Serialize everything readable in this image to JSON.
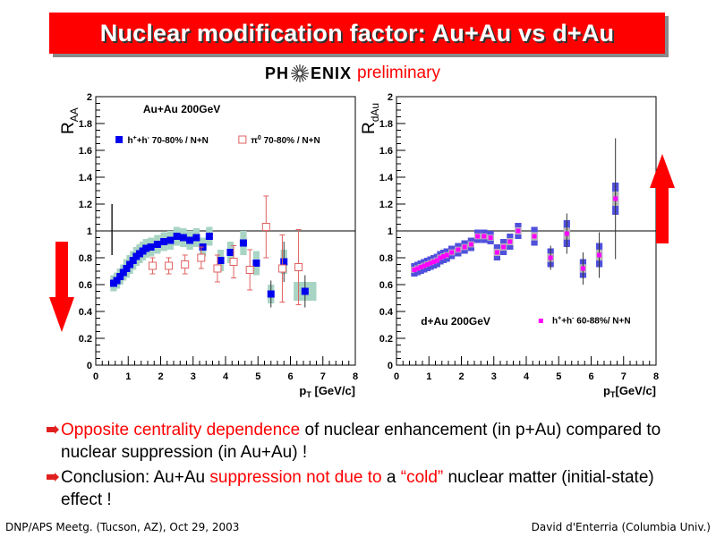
{
  "title": "Nuclear modification factor: Au+Au vs d+Au",
  "logo": {
    "left": "PH",
    "right": "ENIX",
    "tag": "preliminary"
  },
  "colors": {
    "title_bg": "#ff0000",
    "accent_red": "#ff0000",
    "band_green": "#a8d4c4",
    "band_blue": "#5050dd",
    "band_gray": "#b8b8b8",
    "blue": "#0000ee",
    "open_red": "#e06060",
    "magenta": "#ff00ff"
  },
  "chart_data": [
    {
      "type": "scatter",
      "ylabel": "R",
      "ylabel_sub": "AA",
      "xlabel": "p",
      "xlabel_sub": "T",
      "xlabel_unit": " [GeV/c]",
      "xlim": [
        0,
        8
      ],
      "ylim": [
        0,
        2
      ],
      "xticks": [
        "0",
        "1",
        "2",
        "3",
        "4",
        "5",
        "6",
        "7",
        "8"
      ],
      "yticks": [
        "0",
        "0.2",
        "0.4",
        "0.6",
        "0.8",
        "1",
        "1.2",
        "1.4",
        "1.6",
        "1.8",
        "2"
      ],
      "annotation": "Au+Au 200GeV",
      "reference_line": 1,
      "legend": [
        {
          "symbol": "filled-square",
          "label_html": "h<sup>+</sup>+h<sup>-</sup> 70-80% / N+N",
          "label": "h+ +h- 70-80% / N+N"
        },
        {
          "symbol": "open-square",
          "label_html": "π<sup>0</sup> 70-80% / N+N",
          "label": "π0 70-80% / N+N"
        }
      ],
      "legend_position": "top-left",
      "normalization_bar": {
        "x": 0.5,
        "lo": 0.82,
        "hi": 1.2
      },
      "series": [
        {
          "name": "h+ +h- 70-80% / N+N",
          "marker": "filled-square",
          "points": [
            {
              "x": 0.55,
              "y": 0.61,
              "band": 0.06
            },
            {
              "x": 0.65,
              "y": 0.63,
              "band": 0.06
            },
            {
              "x": 0.75,
              "y": 0.66,
              "band": 0.06
            },
            {
              "x": 0.85,
              "y": 0.69,
              "band": 0.06
            },
            {
              "x": 0.95,
              "y": 0.72,
              "band": 0.07
            },
            {
              "x": 1.05,
              "y": 0.75,
              "band": 0.07
            },
            {
              "x": 1.15,
              "y": 0.78,
              "band": 0.07
            },
            {
              "x": 1.25,
              "y": 0.81,
              "band": 0.07
            },
            {
              "x": 1.35,
              "y": 0.83,
              "band": 0.07
            },
            {
              "x": 1.45,
              "y": 0.85,
              "band": 0.07
            },
            {
              "x": 1.55,
              "y": 0.87,
              "band": 0.07
            },
            {
              "x": 1.7,
              "y": 0.88,
              "band": 0.07
            },
            {
              "x": 1.9,
              "y": 0.9,
              "band": 0.07
            },
            {
              "x": 2.1,
              "y": 0.92,
              "band": 0.07
            },
            {
              "x": 2.3,
              "y": 0.93,
              "band": 0.07
            },
            {
              "x": 2.5,
              "y": 0.96,
              "band": 0.07
            },
            {
              "x": 2.7,
              "y": 0.95,
              "band": 0.07
            },
            {
              "x": 2.9,
              "y": 0.93,
              "band": 0.07
            },
            {
              "x": 3.1,
              "y": 0.95,
              "band": 0.07
            },
            {
              "x": 3.3,
              "y": 0.88,
              "band": 0.07
            },
            {
              "x": 3.5,
              "y": 0.96,
              "band": 0.07
            },
            {
              "x": 3.85,
              "y": 0.78,
              "band": 0.08
            },
            {
              "x": 4.15,
              "y": 0.84,
              "band": 0.08
            },
            {
              "x": 4.55,
              "y": 0.91,
              "band": 0.09
            },
            {
              "x": 4.95,
              "y": 0.76,
              "band": 0.09
            },
            {
              "x": 5.4,
              "y": 0.53,
              "band": 0.07,
              "err": 0.1
            },
            {
              "x": 5.8,
              "y": 0.77,
              "band": 0.09,
              "err": 0.15
            },
            {
              "x": 6.45,
              "y": 0.55,
              "band": 0.07,
              "err": 0.12,
              "wide": true
            }
          ]
        },
        {
          "name": "π0 70-80% / N+N",
          "marker": "open-square",
          "points": [
            {
              "x": 1.75,
              "y": 0.74,
              "err": 0.06
            },
            {
              "x": 2.25,
              "y": 0.74,
              "err": 0.06
            },
            {
              "x": 2.75,
              "y": 0.75,
              "err": 0.07
            },
            {
              "x": 3.25,
              "y": 0.8,
              "err": 0.08
            },
            {
              "x": 3.75,
              "y": 0.72,
              "err": 0.1
            },
            {
              "x": 4.25,
              "y": 0.77,
              "err": 0.12
            },
            {
              "x": 4.75,
              "y": 0.71,
              "err": 0.15
            },
            {
              "x": 5.25,
              "y": 1.03,
              "err": 0.23
            },
            {
              "x": 5.75,
              "y": 0.72,
              "err": 0.25
            },
            {
              "x": 6.25,
              "y": 0.73,
              "err": 0.28
            }
          ]
        }
      ]
    },
    {
      "type": "scatter",
      "ylabel": "R",
      "ylabel_sub": "dAu",
      "xlabel": "p",
      "xlabel_sub": "T",
      "xlabel_unit": "[GeV/c]",
      "xlim": [
        0,
        8
      ],
      "ylim": [
        0,
        2
      ],
      "xticks": [
        "0",
        "1",
        "2",
        "3",
        "4",
        "5",
        "6",
        "7",
        "8"
      ],
      "yticks": [
        "0",
        "0.2",
        "0.4",
        "0.6",
        "0.8",
        "1",
        "1.2",
        "1.4",
        "1.6",
        "1.8",
        "2"
      ],
      "annotation": "d+Au 200GeV",
      "reference_line": 1,
      "legend": [
        {
          "symbol": "filled-square-small",
          "label_html": "h<sup>+</sup>+h<sup>-</sup> 60-88%/ N+N",
          "label": "h+ +h- 60-88%/ N+N"
        }
      ],
      "legend_position": "bottom-right",
      "series": [
        {
          "name": "h+ +h- 60-88%/ N+N",
          "marker": "small-square",
          "points": [
            {
              "x": 0.55,
              "y": 0.71,
              "band": 0.05
            },
            {
              "x": 0.65,
              "y": 0.72,
              "band": 0.05
            },
            {
              "x": 0.75,
              "y": 0.73,
              "band": 0.05
            },
            {
              "x": 0.85,
              "y": 0.74,
              "band": 0.05
            },
            {
              "x": 0.95,
              "y": 0.75,
              "band": 0.05
            },
            {
              "x": 1.05,
              "y": 0.76,
              "band": 0.05
            },
            {
              "x": 1.15,
              "y": 0.77,
              "band": 0.05
            },
            {
              "x": 1.25,
              "y": 0.78,
              "band": 0.05
            },
            {
              "x": 1.35,
              "y": 0.8,
              "band": 0.05
            },
            {
              "x": 1.45,
              "y": 0.81,
              "band": 0.05
            },
            {
              "x": 1.55,
              "y": 0.82,
              "band": 0.05
            },
            {
              "x": 1.7,
              "y": 0.84,
              "band": 0.05
            },
            {
              "x": 1.9,
              "y": 0.86,
              "band": 0.05
            },
            {
              "x": 2.1,
              "y": 0.88,
              "band": 0.05
            },
            {
              "x": 2.3,
              "y": 0.9,
              "band": 0.05
            },
            {
              "x": 2.5,
              "y": 0.96,
              "band": 0.05
            },
            {
              "x": 2.7,
              "y": 0.96,
              "band": 0.05
            },
            {
              "x": 2.9,
              "y": 0.95,
              "band": 0.05
            },
            {
              "x": 3.1,
              "y": 0.84,
              "band": 0.06
            },
            {
              "x": 3.3,
              "y": 0.88,
              "band": 0.06
            },
            {
              "x": 3.5,
              "y": 0.92,
              "band": 0.06
            },
            {
              "x": 3.75,
              "y": 1.0,
              "band": 0.06
            },
            {
              "x": 4.25,
              "y": 0.96,
              "band": 0.07
            },
            {
              "x": 4.75,
              "y": 0.8,
              "band": 0.07,
              "err": 0.09
            },
            {
              "x": 5.25,
              "y": 0.98,
              "band": 0.1,
              "err": 0.15
            },
            {
              "x": 5.75,
              "y": 0.72,
              "band": 0.07,
              "err": 0.12
            },
            {
              "x": 6.25,
              "y": 0.82,
              "band": 0.09,
              "err": 0.17
            },
            {
              "x": 6.75,
              "y": 1.24,
              "band": 0.12,
              "err": 0.45
            }
          ]
        }
      ]
    }
  ],
  "bullets": [
    [
      {
        "text": "Opposite centrality dependence",
        "red": true
      },
      {
        "text": " of nuclear enhancement (in p+Au) compared to nuclear suppression (in Au+Au) !",
        "red": false
      }
    ],
    [
      {
        "text": "Conclusion: Au+Au ",
        "red": false
      },
      {
        "text": "suppression not due to",
        "red": true
      },
      {
        "text": " a ",
        "red": false
      },
      {
        "text": "“cold”",
        "red": true
      },
      {
        "text": " nuclear matter (initial-state) effect !",
        "red": false
      }
    ]
  ],
  "footer": {
    "left": "DNP/APS Meetg. (Tucson, AZ), Oct 29, 2003",
    "right": "David d'Enterria (Columbia Univ.)"
  }
}
